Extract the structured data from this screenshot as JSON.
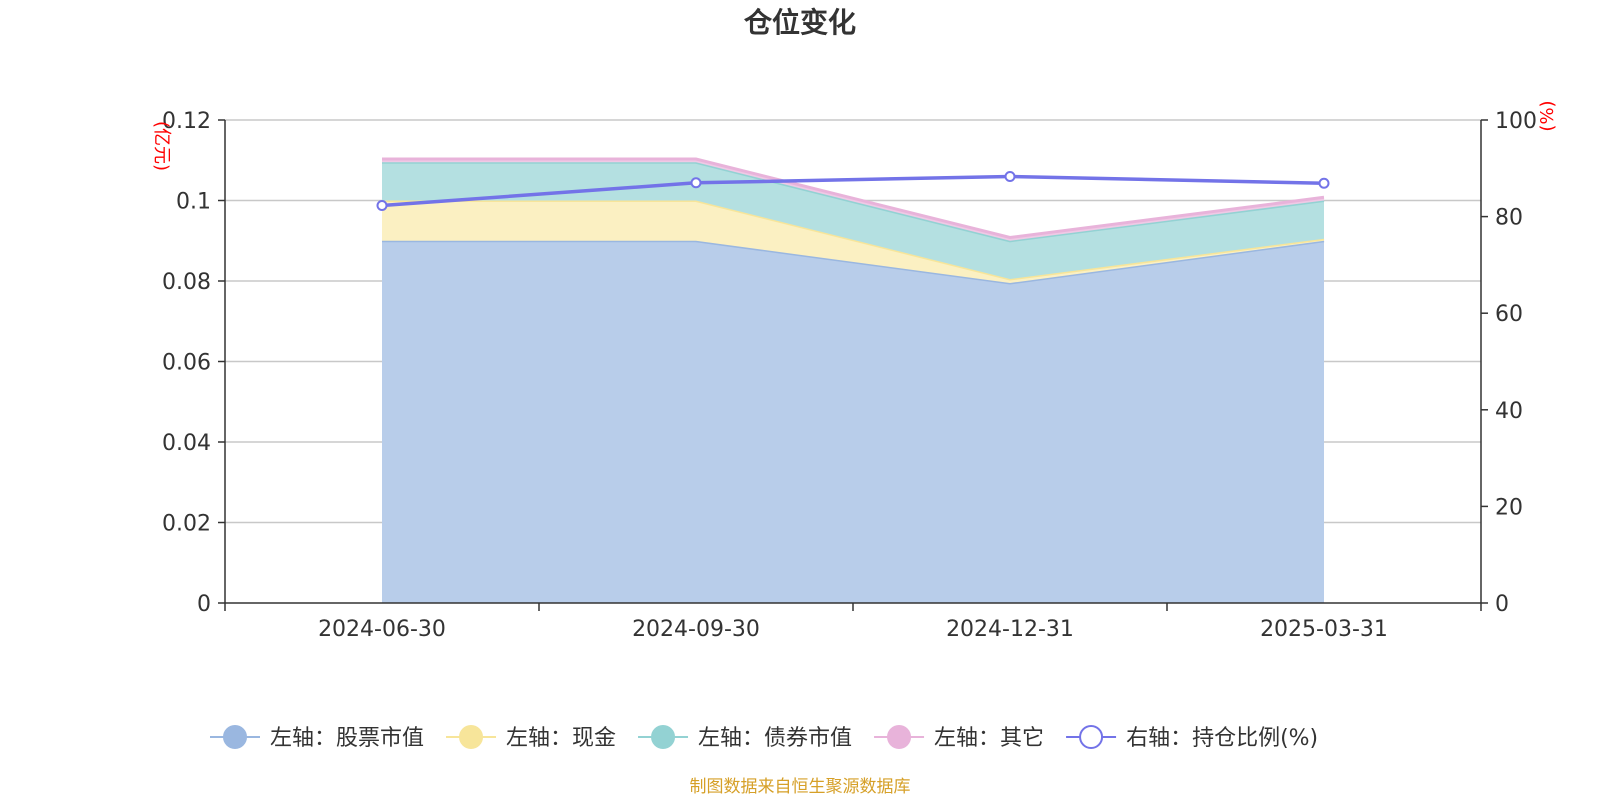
{
  "chart_data": {
    "type": "area",
    "title": "仓位变化",
    "categories": [
      "2024-06-30",
      "2024-09-30",
      "2024-12-31",
      "2025-03-31"
    ],
    "left_axis": {
      "unit": "(亿元)",
      "ylim": [
        0,
        0.12
      ],
      "ticks": [
        "0",
        "0.02",
        "0.04",
        "0.06",
        "0.08",
        "0.1",
        "0.12"
      ]
    },
    "right_axis": {
      "unit": "(%)",
      "ylim": [
        0,
        100
      ],
      "ticks": [
        "0",
        "20",
        "40",
        "60",
        "80",
        "100"
      ]
    },
    "stacked_series": [
      {
        "name": "左轴：股票市值",
        "values": [
          0.09,
          0.09,
          0.0795,
          0.09
        ],
        "color": "#9ab7e0",
        "fill": "#b8cdea"
      },
      {
        "name": "左轴：现金",
        "values": [
          0.01,
          0.01,
          0.001,
          0.0005
        ],
        "color": "#f7e59a",
        "fill": "#fbf0c2"
      },
      {
        "name": "左轴：债券市值",
        "values": [
          0.0095,
          0.0095,
          0.0095,
          0.0095
        ],
        "color": "#93d2d3",
        "fill": "#b4e0e1"
      },
      {
        "name": "左轴：其它",
        "values": [
          0.0008,
          0.0008,
          0.0008,
          0.0008
        ],
        "color": "#e8b3da",
        "fill": "#efc9e5"
      }
    ],
    "line_series": {
      "name": "右轴：持仓比例(%)",
      "values": [
        82.3,
        87,
        88.3,
        86.9
      ],
      "color": "#7373e8"
    },
    "grid": true,
    "legend_position": "bottom"
  },
  "source_note": "制图数据来自恒生聚源数据库"
}
